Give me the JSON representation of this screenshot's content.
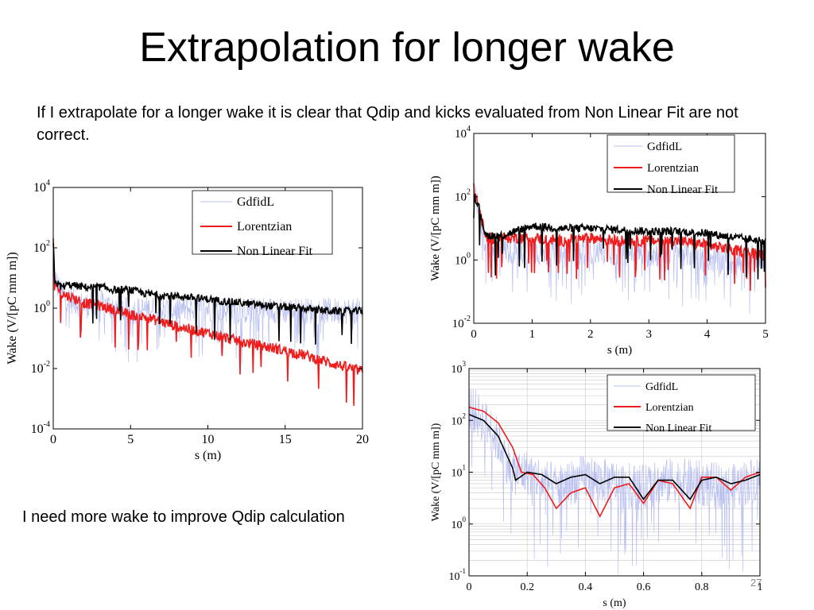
{
  "slide": {
    "title": "Extrapolation for longer wake",
    "intro": "If I extrapolate for a longer wake it is clear that Qdip and kicks evaluated from Non Linear Fit are not correct.",
    "note": "I need more wake to improve Qdip calculation",
    "page_number": "27"
  },
  "legend_labels": [
    "GdfidL",
    "Lorentzian",
    "Non Linear Fit"
  ],
  "series_colors": {
    "GdfidL": "#b8bff0",
    "Lorentzian": "#ee1c1c",
    "Non Linear Fit": "#000000"
  },
  "chart_data": [
    {
      "type": "line",
      "ylabel": "Wake (V/[pC mm m])",
      "xlabel": "s (m)",
      "xlim": [
        0,
        20
      ],
      "ylim": [
        0.0001,
        10000
      ],
      "yscale": "log",
      "xticks": [
        "0",
        "5",
        "10",
        "15",
        "20"
      ],
      "yticks": [
        {
          "base": "10",
          "exp": "4"
        },
        {
          "base": "10",
          "exp": "2"
        },
        {
          "base": "10",
          "exp": "0"
        },
        {
          "base": "10",
          "exp": "-2"
        },
        {
          "base": "10",
          "exp": "-4"
        }
      ],
      "legend": "top-right",
      "series": [
        {
          "name": "GdfidL",
          "x": [
            0,
            0.1,
            0.5,
            1,
            2,
            3,
            4,
            5,
            6,
            8,
            10,
            12,
            14,
            16,
            18,
            20
          ],
          "y": [
            100,
            10,
            3,
            2,
            1.2,
            1.5,
            1.0,
            0.8,
            0.9,
            0.9,
            1.0,
            0.8,
            0.9,
            0.8,
            0.8,
            0.8
          ]
        },
        {
          "name": "Lorentzian",
          "x": [
            0,
            0.1,
            0.5,
            1,
            2,
            3,
            4,
            5,
            6,
            8,
            10,
            12,
            14,
            16,
            18,
            20
          ],
          "y": [
            150,
            8,
            3,
            2.5,
            1.5,
            1.2,
            0.9,
            0.6,
            0.5,
            0.25,
            0.15,
            0.08,
            0.05,
            0.03,
            0.015,
            0.008
          ]
        },
        {
          "name": "Non Linear Fit",
          "x": [
            0,
            0.1,
            0.5,
            1,
            2,
            3,
            4,
            5,
            6,
            8,
            10,
            12,
            14,
            16,
            18,
            20
          ],
          "y": [
            120,
            8,
            5,
            6,
            5,
            5,
            4,
            4,
            3,
            2.5,
            2,
            1.5,
            1.2,
            1.0,
            0.8,
            0.8
          ]
        }
      ]
    },
    {
      "type": "line",
      "ylabel": "Wake (V/[pC mm m])",
      "xlabel": "s (m)",
      "xlim": [
        0,
        5
      ],
      "ylim": [
        0.01,
        10000
      ],
      "yscale": "log",
      "xticks": [
        "0",
        "1",
        "2",
        "3",
        "4",
        "5"
      ],
      "yticks": [
        {
          "base": "10",
          "exp": "4"
        },
        {
          "base": "10",
          "exp": "2"
        },
        {
          "base": "10",
          "exp": "0"
        },
        {
          "base": "10",
          "exp": "-2"
        }
      ],
      "legend": "top-right",
      "series": [
        {
          "name": "GdfidL",
          "x": [
            0,
            0.1,
            0.2,
            0.5,
            1,
            1.5,
            2,
            2.5,
            3,
            3.5,
            4,
            4.5,
            5
          ],
          "y": [
            150,
            30,
            3,
            2,
            2,
            1.5,
            2,
            2,
            1.5,
            2,
            1.2,
            0.8,
            1.5
          ]
        },
        {
          "name": "Lorentzian",
          "x": [
            0,
            0.1,
            0.2,
            0.5,
            1,
            1.5,
            2,
            2.5,
            3,
            3.5,
            4,
            4.5,
            5
          ],
          "y": [
            180,
            40,
            5,
            5,
            5,
            4,
            5,
            4,
            4,
            4,
            3,
            2,
            1.5
          ]
        },
        {
          "name": "Non Linear Fit",
          "x": [
            0,
            0.1,
            0.2,
            0.5,
            1,
            1.5,
            2,
            2.5,
            3,
            3.5,
            4,
            4.5,
            5
          ],
          "y": [
            130,
            40,
            6,
            6,
            12,
            10,
            10,
            9,
            8,
            8,
            7,
            5,
            4
          ]
        }
      ]
    },
    {
      "type": "line",
      "ylabel": "Wake (V/[pC mm m])",
      "xlabel": "s (m)",
      "xlim": [
        0,
        1
      ],
      "ylim": [
        0.1,
        1000
      ],
      "yscale": "log",
      "xticks": [
        "0",
        "0.2",
        "0.4",
        "0.6",
        "0.8",
        "1"
      ],
      "yticks": [
        {
          "base": "10",
          "exp": "3"
        },
        {
          "base": "10",
          "exp": "2"
        },
        {
          "base": "10",
          "exp": "1"
        },
        {
          "base": "10",
          "exp": "0"
        },
        {
          "base": "10",
          "exp": "-1"
        }
      ],
      "grid": true,
      "legend": "top-right",
      "series": [
        {
          "name": "GdfidL",
          "x": [
            0,
            0.05,
            0.1,
            0.15,
            0.2,
            0.3,
            0.4,
            0.5,
            0.6,
            0.7,
            0.8,
            0.9,
            1.0
          ],
          "y": [
            180,
            100,
            40,
            10,
            10,
            5,
            8,
            6,
            5,
            7,
            6,
            5,
            8
          ]
        },
        {
          "name": "Lorentzian",
          "x": [
            0,
            0.05,
            0.1,
            0.15,
            0.18,
            0.22,
            0.26,
            0.3,
            0.35,
            0.4,
            0.45,
            0.5,
            0.55,
            0.6,
            0.65,
            0.7,
            0.76,
            0.8,
            0.85,
            0.9,
            0.95,
            1.0
          ],
          "y": [
            180,
            150,
            90,
            30,
            10,
            9,
            5,
            2,
            4,
            5,
            1.4,
            5,
            6,
            2.5,
            7,
            6,
            2,
            8,
            8,
            4.5,
            8,
            10
          ]
        },
        {
          "name": "Non Linear Fit",
          "x": [
            0,
            0.05,
            0.1,
            0.15,
            0.16,
            0.2,
            0.25,
            0.3,
            0.35,
            0.4,
            0.45,
            0.5,
            0.55,
            0.6,
            0.65,
            0.7,
            0.76,
            0.8,
            0.85,
            0.9,
            0.95,
            1.0
          ],
          "y": [
            130,
            100,
            50,
            12,
            7,
            10,
            9,
            6,
            8,
            9,
            6,
            8,
            8,
            3,
            7,
            7,
            3,
            7,
            8,
            6,
            7,
            9
          ]
        }
      ]
    }
  ]
}
